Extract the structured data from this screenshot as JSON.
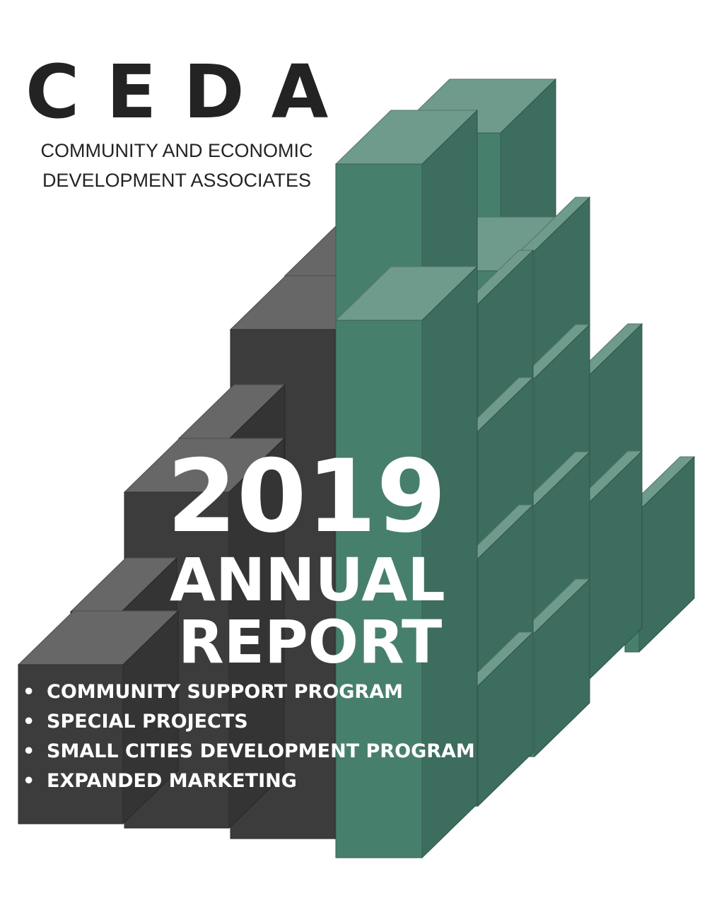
{
  "logo": {
    "acronym": "CEDA",
    "name_line_1": "COMMUNITY AND ECONOMIC",
    "name_line_2": "DEVELOPMENT ASSOCIATES"
  },
  "report": {
    "year": "2019",
    "title_line_1": "ANNUAL",
    "title_line_2": "REPORT"
  },
  "programs": [
    "COMMUNITY SUPPORT PROGRAM",
    "SPECIAL PROJECTS",
    "SMALL CITIES DEVELOPMENT PROGRAM",
    "EXPANDED MARKETING"
  ],
  "bullet_glyph": "•",
  "colors": {
    "dark_block": "#3c3c3c",
    "green_block": "#477f6d",
    "text_dark": "#232323",
    "text_light": "#ffffff"
  }
}
